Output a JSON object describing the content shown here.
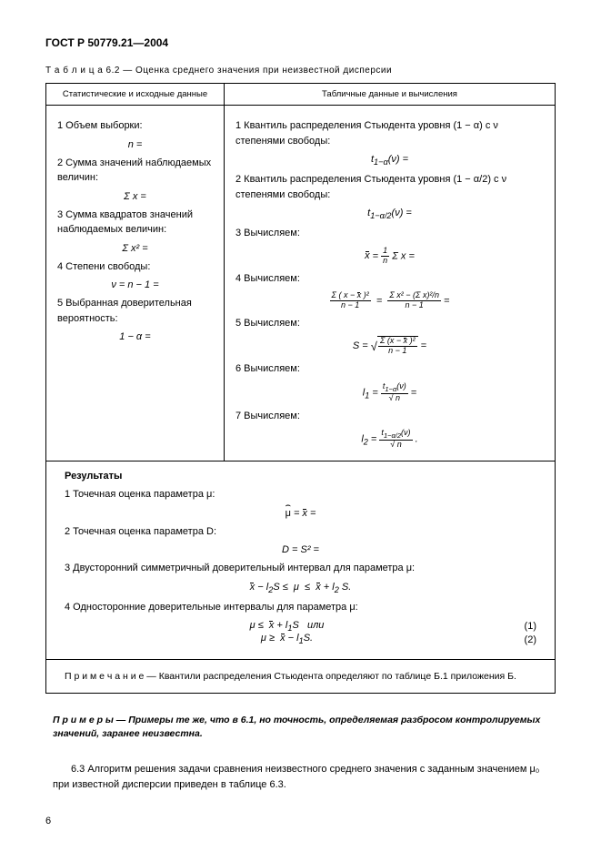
{
  "doc_header": "ГОСТ Р 50779.21—2004",
  "table_caption": "Т а б л и ц а  6.2 — Оценка среднего значения при неизвестной дисперсии",
  "headers": {
    "left": "Статистические и исходные данные",
    "right": "Табличные данные и вычисления"
  },
  "left_col": {
    "i1": "1 Объем выборки:",
    "f1": "n =",
    "i2": "2 Сумма значений наблюдаемых величин:",
    "f2": "Σ x =",
    "i3": "3 Сумма квадратов значений наблюдаемых величин:",
    "f3": "Σ x² =",
    "i4": "4 Степени свободы:",
    "f4": "ν = n − 1 =",
    "i5": "5 Выбранная доверительная вероятность:",
    "f5": "1 − α ="
  },
  "right_col": {
    "i1": "1 Квантиль распределения Стьюдента уровня (1 − α) с ν степенями свободы:",
    "i2": "2 Квантиль распределения Стьюдента уровня (1 − α/2) с ν степенями свободы:",
    "i3": "3 Вычисляем:",
    "i4": "4 Вычисляем:",
    "i5": "5 Вычисляем:",
    "i6": "6 Вычисляем:",
    "i7": "7 Вычисляем:"
  },
  "results": {
    "title": "Результаты",
    "r1": "1 Точечная оценка параметра μ:",
    "r2": "2 Точечная оценка параметра D:",
    "f2": "D = S² =",
    "r3": "3 Двусторонний симметричный доверительный интервал для параметра μ:",
    "r4": "4 Односторонние доверительные интервалы для параметра μ:",
    "eq1_num": "(1)",
    "eq2_num": "(2)"
  },
  "note": "П р и м е ч а н и е — Квантили распределения Стьюдента определяют по таблице Б.1 приложения Б.",
  "examples": "П р и м е р ы — Примеры те же, что в 6.1, но точность, определяемая разбросом контролируемых значений, заранее неизвестна.",
  "section63": "6.3 Алгоритм решения задачи сравнения неизвестного среднего значения с заданным значением μ₀ при известной дисперсии приведен в таблице 6.3.",
  "page_number": "6"
}
